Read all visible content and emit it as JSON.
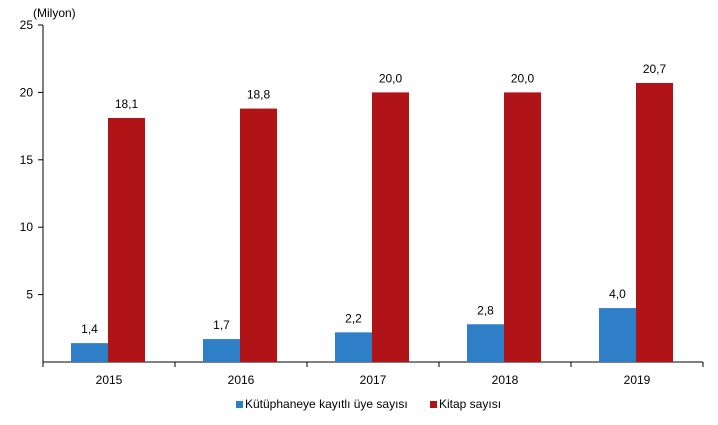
{
  "chart_data": {
    "type": "bar",
    "unit_label": "(Milyon)",
    "categories": [
      "2015",
      "2016",
      "2017",
      "2018",
      "2019"
    ],
    "series": [
      {
        "name": "Kütüphaneye kayıtlı üye sayısı",
        "color": "#2E7FC8",
        "values": [
          1.4,
          1.7,
          2.2,
          2.8,
          4.0
        ],
        "labels": [
          "1,4",
          "1,7",
          "2,2",
          "2,8",
          "4,0"
        ]
      },
      {
        "name": "Kitap sayısı",
        "color": "#B01417",
        "values": [
          18.1,
          18.8,
          20.0,
          20.0,
          20.7
        ],
        "labels": [
          "18,1",
          "18,8",
          "20,0",
          "20,0",
          "20,7"
        ]
      }
    ],
    "ylim": [
      0,
      25
    ],
    "yticks": [
      5,
      10,
      15,
      20,
      25
    ],
    "grid": false,
    "legend_position": "bottom"
  }
}
